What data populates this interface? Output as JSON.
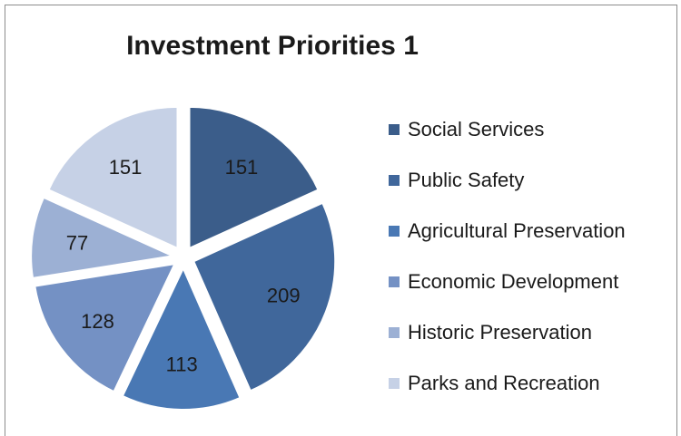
{
  "chart_data": {
    "type": "pie",
    "title": "Investment Priorities 1",
    "legend_position": "right",
    "categories": [
      "Social Services",
      "Public Safety",
      "Agricultural Preservation",
      "Economic Development",
      "Historic Preservation",
      "Parks and Recreation"
    ],
    "values": [
      151,
      209,
      113,
      128,
      77,
      151
    ],
    "colors": [
      "#3b5d8a",
      "#40679b",
      "#4978b4",
      "#7491c4",
      "#9cb0d4",
      "#c6d1e6"
    ],
    "exploded": true
  }
}
